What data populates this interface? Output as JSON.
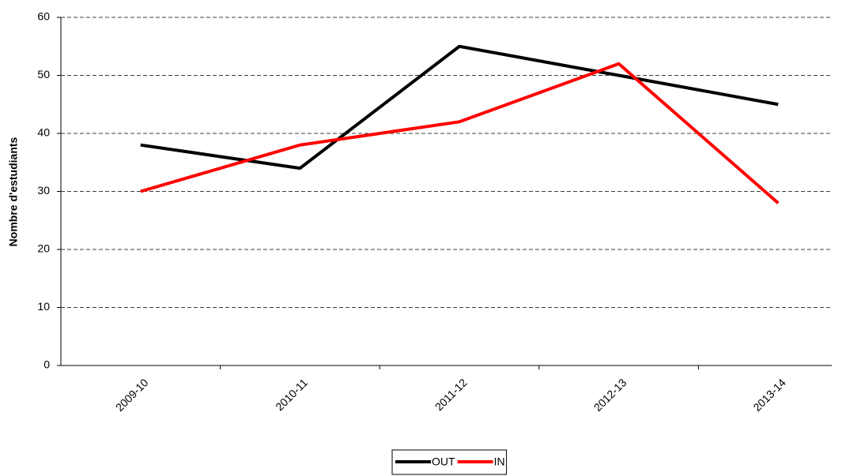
{
  "chart_data": {
    "type": "line",
    "y_label": "Nombre d'estudiants",
    "categories": [
      "2009-10",
      "2010-11",
      "2011-12",
      "2012-13",
      "2013-14"
    ],
    "series": [
      {
        "name": "OUT",
        "color": "#000000",
        "values": [
          38,
          34,
          55,
          50,
          45
        ]
      },
      {
        "name": "IN",
        "color": "#ff0000",
        "values": [
          30,
          38,
          42,
          52,
          28
        ]
      }
    ],
    "ylim": [
      0,
      60
    ],
    "yticks": [
      0,
      10,
      20,
      30,
      40,
      50,
      60
    ],
    "grid": true,
    "legend": "bottom"
  }
}
